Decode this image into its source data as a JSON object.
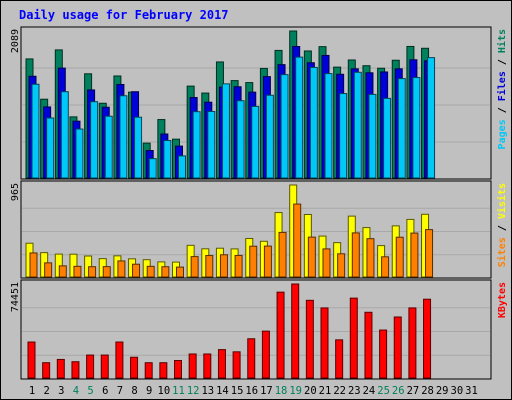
{
  "title": "Daily usage for February 2017",
  "colors": {
    "hits": "#00805c",
    "files": "#0000d8",
    "pages": "#00c8f8",
    "visits": "#ffff00",
    "sites": "#ff8000",
    "kbytes": "#ff0000",
    "background": "#c0c0c0",
    "day_label": "#000000",
    "weekend_label": "#00805c"
  },
  "chart_data": {
    "type": "bar",
    "categories": [
      "1",
      "2",
      "3",
      "4",
      "5",
      "6",
      "7",
      "8",
      "9",
      "10",
      "11",
      "12",
      "13",
      "14",
      "15",
      "16",
      "17",
      "18",
      "19",
      "20",
      "21",
      "22",
      "23",
      "24",
      "25",
      "26",
      "27",
      "28",
      "29",
      "30",
      "31"
    ],
    "weekend_days": [
      "4",
      "5",
      "11",
      "12",
      "18",
      "19",
      "25",
      "26"
    ],
    "panels": [
      {
        "id": "usage",
        "max_label": "2089",
        "ymax": 2089,
        "legend": [
          {
            "text": "Pages",
            "series": "pages"
          },
          {
            "text": " / ",
            "series": null
          },
          {
            "text": "Files",
            "series": "files"
          },
          {
            "text": " / ",
            "series": null
          },
          {
            "text": "Hits",
            "series": "hits"
          }
        ],
        "series": [
          {
            "key": "hits",
            "values": [
              1695,
              1126,
              1822,
              877,
              1485,
              1069,
              1454,
              1226,
              506,
              839,
              562,
              1311,
              1213,
              1652,
              1389,
              1361,
              1561,
              1815,
              2089,
              1807,
              1868,
              1579,
              1680,
              1599,
              1563,
              1676,
              1871,
              1845,
              null,
              null,
              null
            ]
          },
          {
            "key": "files",
            "values": [
              1450,
              1017,
              1565,
              816,
              1257,
              1013,
              1334,
              1232,
              402,
              635,
              464,
              1150,
              1084,
              1296,
              1302,
              1226,
              1445,
              1614,
              1870,
              1641,
              1744,
              1478,
              1555,
              1499,
              1511,
              1555,
              1683,
              1669,
              null,
              null,
              null
            ]
          },
          {
            "key": "pages",
            "values": [
              1337,
              861,
              1232,
              705,
              1091,
              886,
              1175,
              872,
              287,
              543,
              326,
              950,
              953,
              1343,
              1105,
              1024,
              1182,
              1473,
              1720,
              1575,
              1488,
              1206,
              1506,
              1194,
              1138,
              1417,
              1432,
              1713,
              null,
              null,
              null
            ]
          }
        ]
      },
      {
        "id": "visits",
        "max_label": "965",
        "ymax": 965,
        "legend": [
          {
            "text": "Sites",
            "series": "sites"
          },
          {
            "text": " / ",
            "series": null
          },
          {
            "text": "Visits",
            "series": "visits"
          }
        ],
        "series": [
          {
            "key": "visits",
            "values": [
              361,
              263,
              248,
              247,
              228,
              201,
              230,
              199,
              190,
              167,
              165,
              339,
              303,
              309,
              302,
              410,
              381,
              679,
              965,
              659,
              435,
              367,
              642,
              523,
              336,
              541,
              608,
              661,
              null,
              null,
              null
            ]
          },
          {
            "key": "sites",
            "values": [
              260,
              157,
              126,
              121,
              117,
              118,
              177,
              143,
              121,
              117,
              113,
              222,
              233,
              241,
              234,
              330,
              331,
              473,
              767,
              424,
              302,
              251,
              468,
              408,
              220,
              423,
              466,
              502,
              null,
              null,
              null
            ]
          }
        ]
      },
      {
        "id": "kbytes",
        "max_label": "74451",
        "ymax": 74451,
        "legend": [
          {
            "text": "KBytes",
            "series": "kbytes"
          }
        ],
        "series": [
          {
            "key": "kbytes",
            "values": [
              28976,
              12770,
              15327,
              13540,
              18758,
              18758,
              28976,
              17054,
              12770,
              12770,
              14476,
              19610,
              19610,
              23020,
              21313,
              31533,
              37502,
              68069,
              74451,
              61662,
              55700,
              30683,
              63367,
              52290,
              38358,
              48592,
              55700,
              62522,
              null,
              null,
              null
            ]
          }
        ]
      }
    ]
  }
}
